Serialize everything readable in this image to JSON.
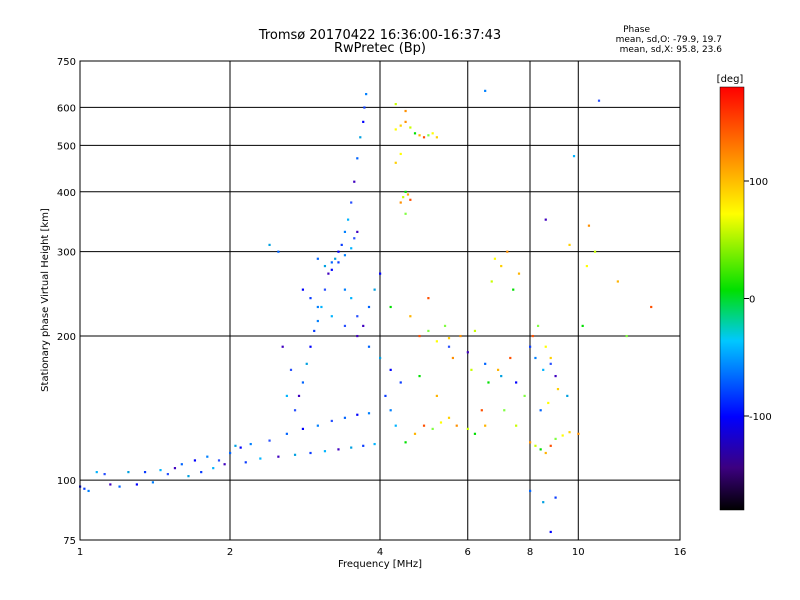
{
  "chart_data": {
    "type": "scatter",
    "title": "Tromsø 20170422 16:36:00-16:37:43",
    "subtitle": "RwPretec (Bp)",
    "xlabel": "Frequency [MHz]",
    "ylabel": "Stationary phase Virtual Height [km]",
    "x_scale": "log",
    "y_scale": "log",
    "xlim": [
      1,
      16
    ],
    "ylim": [
      75,
      750
    ],
    "x_ticks": [
      1,
      2,
      4,
      6,
      8,
      10,
      16
    ],
    "y_ticks": [
      75,
      100,
      200,
      300,
      400,
      500,
      600,
      750
    ],
    "grid": true,
    "phase_info": {
      "title": "Phase",
      "line_o": "mean, sd,O: -79.9, 19.7",
      "line_x": "mean, sd,X: 95.8, 23.6"
    },
    "colorbar": {
      "label": "[deg]",
      "ticks": [
        100,
        0,
        -100
      ],
      "range": [
        -180,
        180
      ],
      "colormap": "rainbow"
    },
    "series": [
      {
        "mode": "O",
        "points": [
          [
            1.0,
            97
          ],
          [
            1.02,
            96
          ],
          [
            1.04,
            95
          ],
          [
            1.08,
            104
          ],
          [
            1.12,
            103
          ],
          [
            1.15,
            98
          ],
          [
            1.2,
            97
          ],
          [
            1.25,
            104
          ],
          [
            1.3,
            98
          ],
          [
            1.35,
            104
          ],
          [
            1.4,
            99
          ],
          [
            1.45,
            105
          ],
          [
            1.5,
            103
          ],
          [
            1.55,
            106
          ],
          [
            1.6,
            108
          ],
          [
            1.65,
            102
          ],
          [
            1.7,
            110
          ],
          [
            1.75,
            104
          ],
          [
            1.8,
            112
          ],
          [
            1.85,
            106
          ],
          [
            1.9,
            110
          ],
          [
            1.95,
            108
          ],
          [
            2.0,
            114
          ],
          [
            2.05,
            118
          ],
          [
            2.1,
            117
          ],
          [
            2.15,
            109
          ],
          [
            2.2,
            119
          ],
          [
            2.3,
            111
          ],
          [
            2.4,
            121
          ],
          [
            2.5,
            112
          ],
          [
            2.6,
            125
          ],
          [
            2.7,
            113
          ],
          [
            2.8,
            128
          ],
          [
            2.9,
            114
          ],
          [
            3.0,
            130
          ],
          [
            3.1,
            115
          ],
          [
            3.2,
            133
          ],
          [
            3.3,
            116
          ],
          [
            3.4,
            135
          ],
          [
            3.5,
            117
          ],
          [
            3.6,
            137
          ],
          [
            3.7,
            118
          ],
          [
            3.8,
            138
          ],
          [
            3.9,
            119
          ],
          [
            2.7,
            140
          ],
          [
            2.75,
            150
          ],
          [
            2.8,
            160
          ],
          [
            2.85,
            175
          ],
          [
            2.9,
            190
          ],
          [
            2.95,
            205
          ],
          [
            3.0,
            215
          ],
          [
            3.05,
            230
          ],
          [
            3.1,
            250
          ],
          [
            3.15,
            270
          ],
          [
            3.2,
            285
          ],
          [
            3.25,
            290
          ],
          [
            3.3,
            300
          ],
          [
            3.35,
            310
          ],
          [
            3.4,
            330
          ],
          [
            3.45,
            350
          ],
          [
            3.5,
            380
          ],
          [
            3.55,
            420
          ],
          [
            3.6,
            470
          ],
          [
            3.65,
            520
          ],
          [
            3.7,
            560
          ],
          [
            3.72,
            600
          ],
          [
            3.75,
            640
          ],
          [
            2.6,
            150
          ],
          [
            2.65,
            170
          ],
          [
            2.55,
            190
          ],
          [
            3.0,
            290
          ],
          [
            3.1,
            280
          ],
          [
            3.2,
            275
          ],
          [
            3.3,
            285
          ],
          [
            3.4,
            295
          ],
          [
            3.5,
            305
          ],
          [
            3.55,
            320
          ],
          [
            3.6,
            330
          ],
          [
            2.5,
            300
          ],
          [
            2.4,
            310
          ],
          [
            2.8,
            250
          ],
          [
            2.9,
            240
          ],
          [
            3.0,
            230
          ],
          [
            3.2,
            220
          ],
          [
            3.4,
            210
          ],
          [
            3.6,
            200
          ],
          [
            3.8,
            190
          ],
          [
            4.0,
            180
          ],
          [
            4.2,
            170
          ],
          [
            4.4,
            160
          ],
          [
            3.4,
            250
          ],
          [
            3.5,
            240
          ],
          [
            3.6,
            220
          ],
          [
            3.7,
            210
          ],
          [
            3.8,
            230
          ],
          [
            3.9,
            250
          ],
          [
            4.0,
            270
          ],
          [
            4.1,
            150
          ],
          [
            4.2,
            140
          ],
          [
            4.3,
            130
          ],
          [
            5.5,
            190
          ],
          [
            6.0,
            185
          ],
          [
            6.5,
            175
          ],
          [
            7.0,
            165
          ],
          [
            7.5,
            160
          ],
          [
            8.0,
            190
          ],
          [
            8.2,
            180
          ],
          [
            8.5,
            170
          ],
          [
            8.8,
            175
          ],
          [
            9.0,
            165
          ],
          [
            8.0,
            95
          ],
          [
            8.5,
            90
          ],
          [
            8.8,
            78
          ],
          [
            9.0,
            92
          ],
          [
            6.5,
            650
          ],
          [
            9.8,
            475
          ],
          [
            11.0,
            620
          ],
          [
            8.6,
            350
          ],
          [
            8.4,
            140
          ],
          [
            9.5,
            150
          ]
        ]
      },
      {
        "mode": "X",
        "points": [
          [
            4.3,
            540
          ],
          [
            4.4,
            550
          ],
          [
            4.5,
            560
          ],
          [
            4.6,
            545
          ],
          [
            4.7,
            530
          ],
          [
            4.8,
            525
          ],
          [
            4.9,
            520
          ],
          [
            5.0,
            525
          ],
          [
            5.1,
            530
          ],
          [
            5.2,
            520
          ],
          [
            4.4,
            380
          ],
          [
            4.45,
            390
          ],
          [
            4.5,
            400
          ],
          [
            4.55,
            395
          ],
          [
            4.6,
            385
          ],
          [
            4.5,
            360
          ],
          [
            4.4,
            480
          ],
          [
            4.3,
            460
          ],
          [
            4.5,
            590
          ],
          [
            4.3,
            610
          ],
          [
            4.5,
            120
          ],
          [
            4.7,
            125
          ],
          [
            4.9,
            130
          ],
          [
            5.1,
            128
          ],
          [
            5.3,
            132
          ],
          [
            5.5,
            135
          ],
          [
            5.7,
            130
          ],
          [
            6.0,
            128
          ],
          [
            6.2,
            125
          ],
          [
            6.5,
            130
          ],
          [
            4.8,
            200
          ],
          [
            5.0,
            205
          ],
          [
            5.2,
            195
          ],
          [
            5.5,
            198
          ],
          [
            5.8,
            200
          ],
          [
            6.2,
            205
          ],
          [
            4.2,
            230
          ],
          [
            4.6,
            220
          ],
          [
            5.0,
            240
          ],
          [
            5.4,
            210
          ],
          [
            6.8,
            290
          ],
          [
            7.0,
            280
          ],
          [
            7.2,
            300
          ],
          [
            6.7,
            260
          ],
          [
            7.4,
            250
          ],
          [
            7.6,
            270
          ],
          [
            8.1,
            200
          ],
          [
            8.3,
            210
          ],
          [
            8.6,
            190
          ],
          [
            8.8,
            180
          ],
          [
            8.0,
            120
          ],
          [
            8.2,
            118
          ],
          [
            8.4,
            116
          ],
          [
            8.6,
            114
          ],
          [
            8.8,
            118
          ],
          [
            9.0,
            122
          ],
          [
            9.3,
            124
          ],
          [
            9.6,
            126
          ],
          [
            10.0,
            125
          ],
          [
            7.5,
            130
          ],
          [
            6.6,
            160
          ],
          [
            6.9,
            170
          ],
          [
            7.3,
            180
          ],
          [
            7.8,
            150
          ],
          [
            8.7,
            145
          ],
          [
            9.1,
            155
          ],
          [
            10.5,
            340
          ],
          [
            10.8,
            300
          ],
          [
            10.2,
            210
          ],
          [
            12.0,
            260
          ],
          [
            14.0,
            230
          ],
          [
            12.5,
            200
          ],
          [
            10.4,
            280
          ],
          [
            9.6,
            310
          ],
          [
            5.6,
            180
          ],
          [
            6.1,
            170
          ],
          [
            4.8,
            165
          ],
          [
            5.2,
            150
          ],
          [
            6.4,
            140
          ],
          [
            7.1,
            140
          ]
        ]
      }
    ]
  }
}
